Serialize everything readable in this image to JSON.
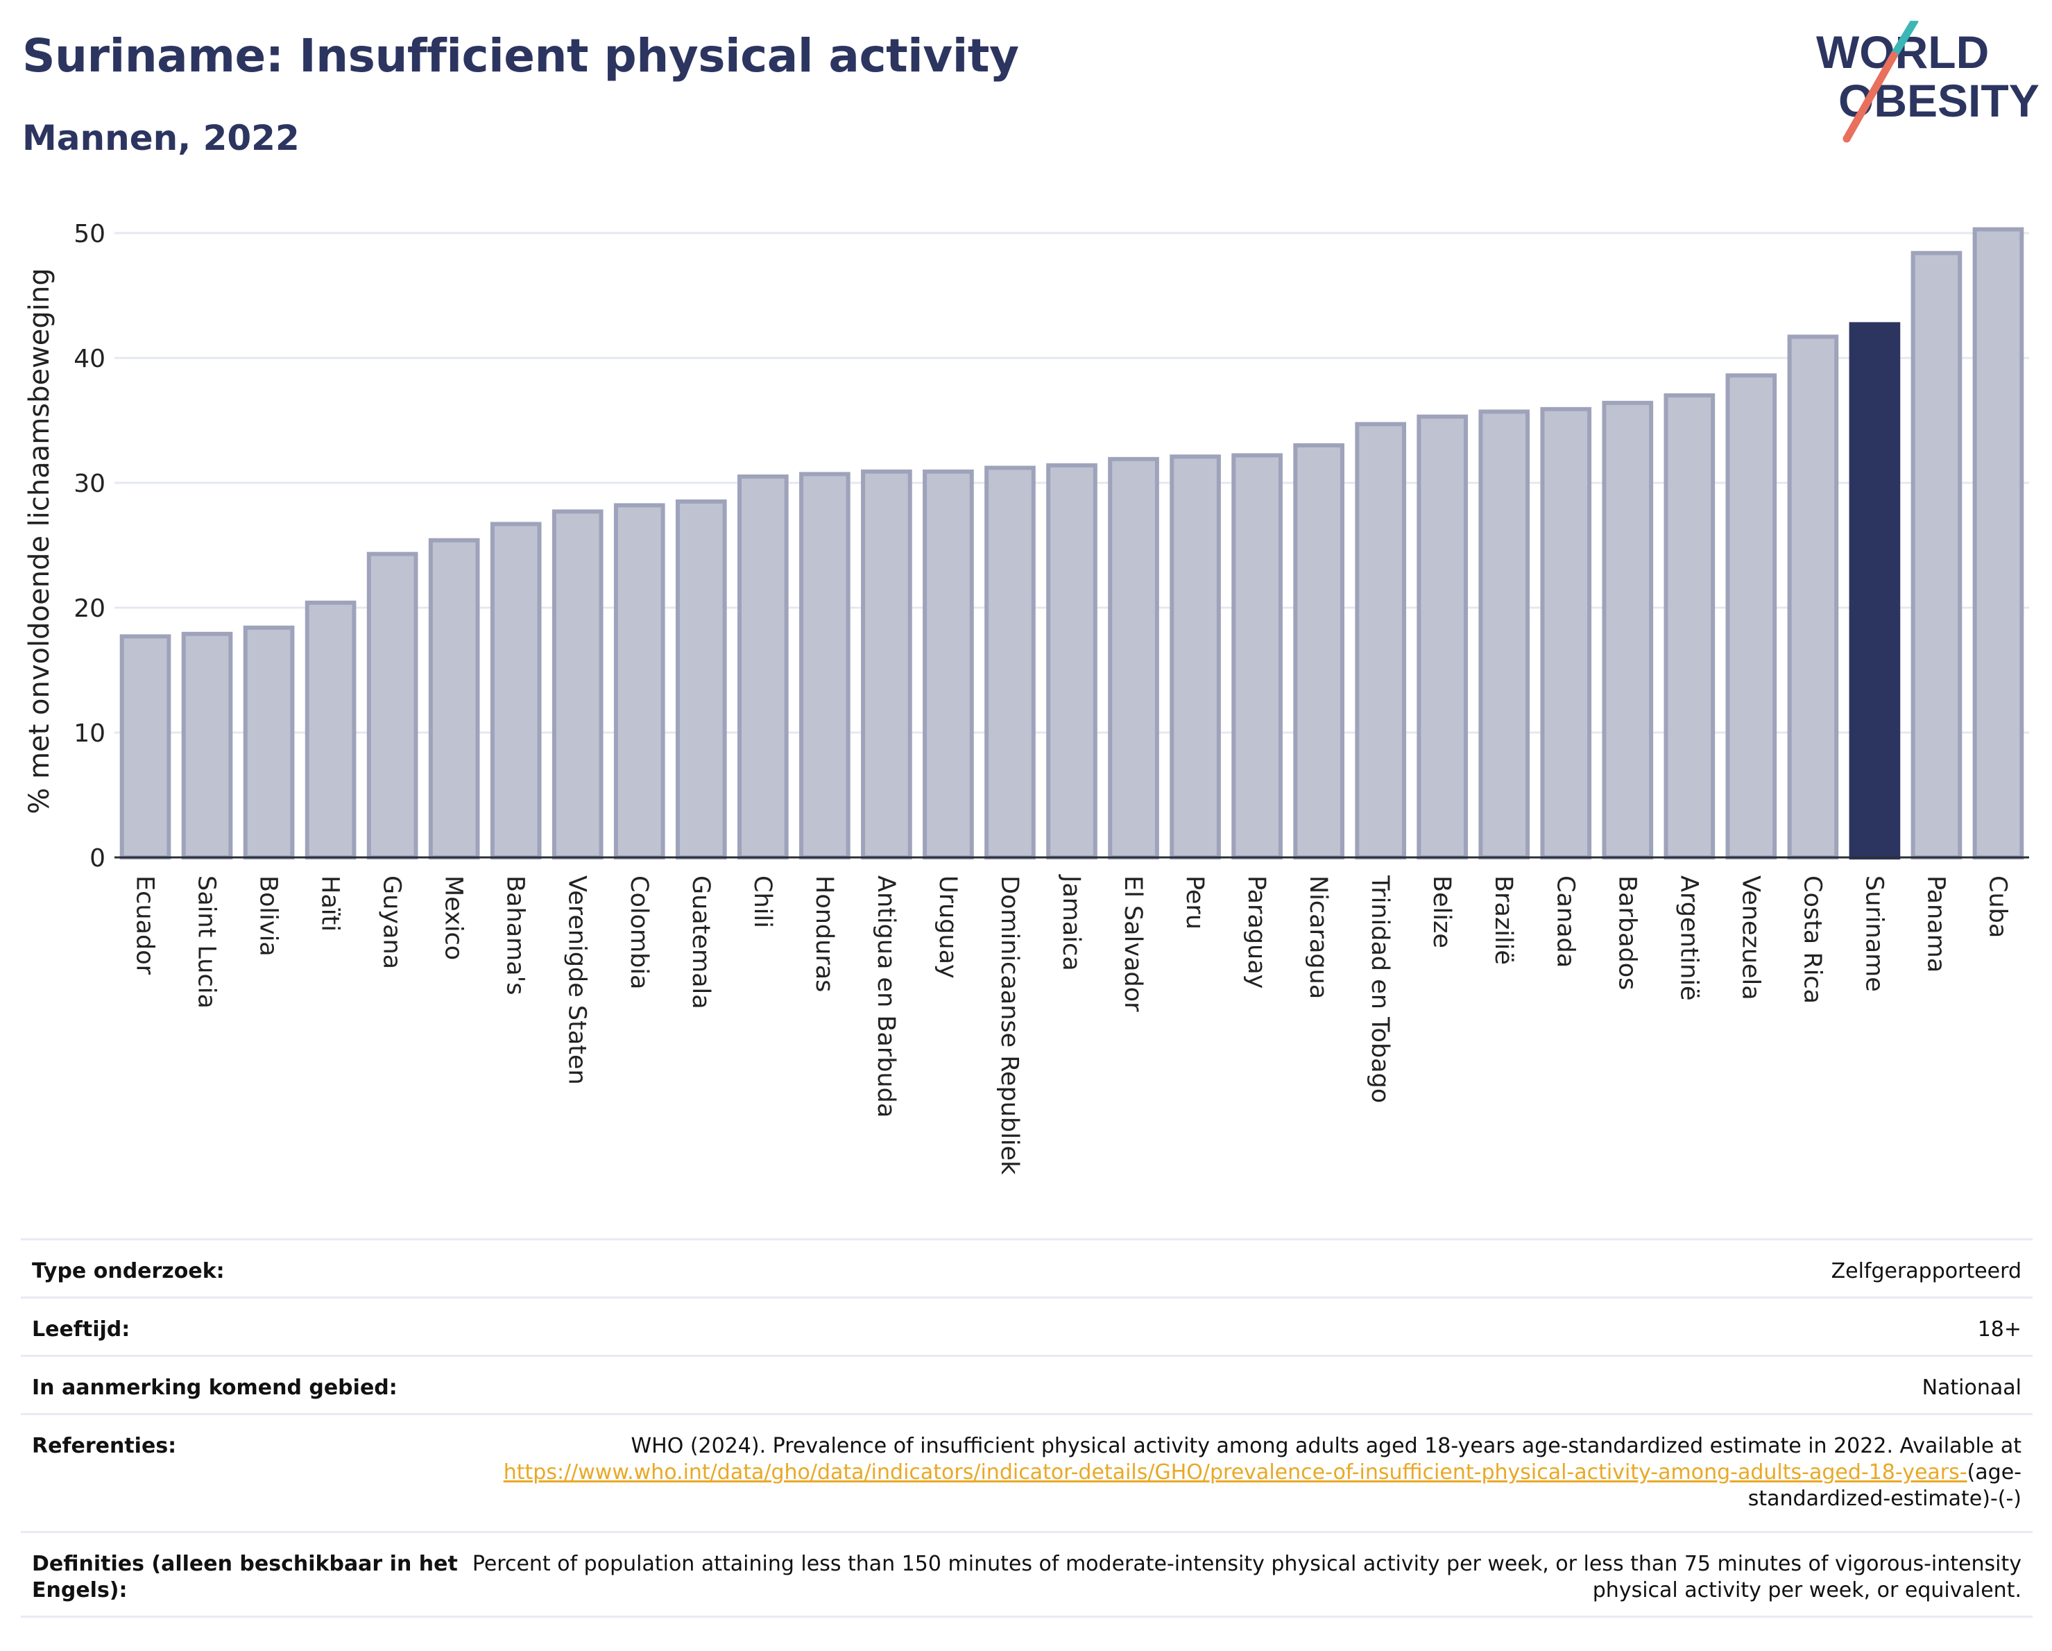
{
  "header": {
    "title": "Suriname: Insufficient physical activity",
    "subtitle": "Mannen, 2022",
    "logo_line1": "WORLD",
    "logo_line2": "OBESITY"
  },
  "colors": {
    "title": "#2c3560",
    "bar": "#bfc2d0",
    "bar_edge": "#9ea3bb",
    "highlight": "#2c3560",
    "grid": "#e6e8f0",
    "logo_teal": "#3bb7b5",
    "logo_coral": "#e8705c",
    "link": "#e9a825"
  },
  "chart_data": {
    "type": "bar",
    "ylabel": "% met onvoldoende lichaamsbeweging",
    "xlabel": "",
    "ylim": [
      0,
      52
    ],
    "yticks": [
      0,
      10,
      20,
      30,
      40,
      50
    ],
    "grid": true,
    "highlight": "Suriname",
    "categories": [
      "Ecuador",
      "Saint Lucia",
      "Bolivia",
      "Haïti",
      "Guyana",
      "Mexico",
      "Bahama's",
      "Verenigde Staten",
      "Colombia",
      "Guatemala",
      "Chili",
      "Honduras",
      "Antigua en Barbuda",
      "Uruguay",
      "Dominicaanse Republiek",
      "Jamaica",
      "El Salvador",
      "Peru",
      "Paraguay",
      "Nicaragua",
      "Trinidad en Tobago",
      "Belize",
      "Brazilië",
      "Canada",
      "Barbados",
      "Argentinië",
      "Venezuela",
      "Costa Rica",
      "Suriname",
      "Panama",
      "Cuba"
    ],
    "values": [
      17.7,
      17.9,
      18.4,
      20.4,
      24.3,
      25.4,
      26.7,
      27.7,
      28.2,
      28.5,
      30.5,
      30.7,
      30.9,
      30.9,
      31.2,
      31.4,
      31.9,
      32.1,
      32.2,
      33.0,
      34.7,
      35.3,
      35.7,
      35.9,
      36.4,
      37.0,
      38.6,
      41.7,
      42.7,
      48.4,
      50.3
    ]
  },
  "info": {
    "survey_label": "Type onderzoek:",
    "survey_value": "Zelfgerapporteerd",
    "age_label": "Leeftijd:",
    "age_value": "18+",
    "area_label": "In aanmerking komend gebied:",
    "area_value": "Nationaal",
    "ref_label": "Referenties:",
    "ref_text": "WHO (2024). Prevalence of insufficient physical activity among adults aged 18-years age-standardized estimate in 2022. Available at",
    "ref_link": "https://www.who.int/data/gho/data/indicators/indicator-details/GHO/prevalence-of-insufficient-physical-activity-among-adults-aged-18-years-",
    "ref_tail": "(age-standardized-estimate)-(-)",
    "def_label": "Definities (alleen beschikbaar in het Engels):",
    "def_value": "Percent of population attaining less than 150 minutes of moderate-intensity physical activity per week, or less than 75 minutes of vigorous-intensity physical activity per week, or equivalent."
  }
}
